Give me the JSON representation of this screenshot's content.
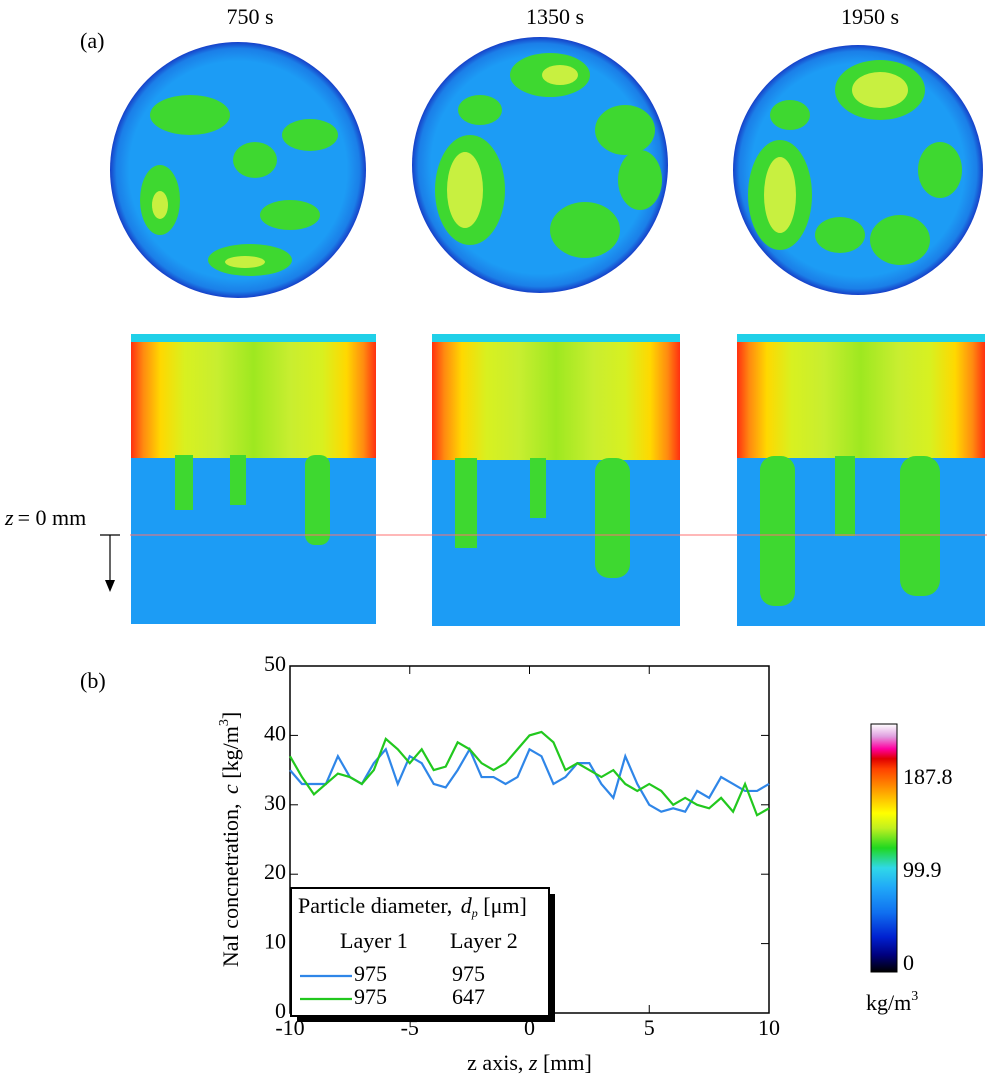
{
  "panel_a": {
    "label": "(a)",
    "times": [
      "750 s",
      "1350 s",
      "1950 s"
    ],
    "z_label_var": "z",
    "z_label_rest": "= 0 mm"
  },
  "panel_b_label": "(b)",
  "colorbar": {
    "labels": [
      187.8,
      99.9,
      0
    ],
    "unit": "kg/m",
    "unit_exp": "3"
  },
  "chart_data": {
    "type": "line",
    "y_label": {
      "text": "NaI concnetration, ",
      "var": "c",
      "unit": " [kg/m",
      "exp": "3",
      "end": "]"
    },
    "x_label": {
      "text": "z axis, ",
      "var": "z",
      "unit": " [mm]"
    },
    "legend": {
      "title": "Particle diameter, ",
      "title_var": "d",
      "title_sub": "p",
      "title_unit": " [μm]",
      "col1": "Layer 1",
      "col2": "Layer 2"
    },
    "x": [
      -10,
      -9.5,
      -9,
      -8.5,
      -8,
      -7.5,
      -7,
      -6.5,
      -6,
      -5.5,
      -5,
      -4.5,
      -4,
      -3.5,
      -3,
      -2.5,
      -2,
      -1.5,
      -1,
      -0.5,
      0,
      0.5,
      1,
      1.5,
      2,
      2.5,
      3,
      3.5,
      4,
      4.5,
      5,
      5.5,
      6,
      6.5,
      7,
      7.5,
      8,
      8.5,
      9,
      9.5,
      10
    ],
    "series": [
      {
        "layer1": "975",
        "layer2": "975",
        "color": "#2f86e8",
        "values": [
          35,
          33,
          33,
          33,
          37,
          34,
          33,
          36,
          38,
          33,
          37,
          36,
          33,
          32.5,
          35,
          38,
          34,
          34,
          33,
          34,
          38,
          37,
          33,
          34,
          36,
          36,
          33,
          31,
          37,
          33,
          30,
          29,
          29.5,
          29,
          32,
          31,
          34,
          33,
          32,
          32,
          33
        ]
      },
      {
        "layer1": "975",
        "layer2": "647",
        "color": "#22c81e",
        "values": [
          37,
          34,
          31.5,
          33,
          34.5,
          34,
          33,
          35,
          39.5,
          38,
          36,
          38,
          35,
          35.5,
          39,
          38,
          36,
          35,
          36,
          38,
          40,
          40.5,
          39,
          35,
          36,
          35,
          34,
          35,
          33,
          32,
          33,
          32,
          30,
          31,
          30,
          29.5,
          31,
          29,
          33,
          28.5,
          29.5
        ]
      }
    ],
    "xlim": [
      -10,
      10
    ],
    "xticks": [
      -10,
      -5,
      0,
      5,
      10
    ],
    "ylim": [
      0,
      50
    ],
    "yticks": [
      0,
      10,
      20,
      30,
      40,
      50
    ]
  }
}
